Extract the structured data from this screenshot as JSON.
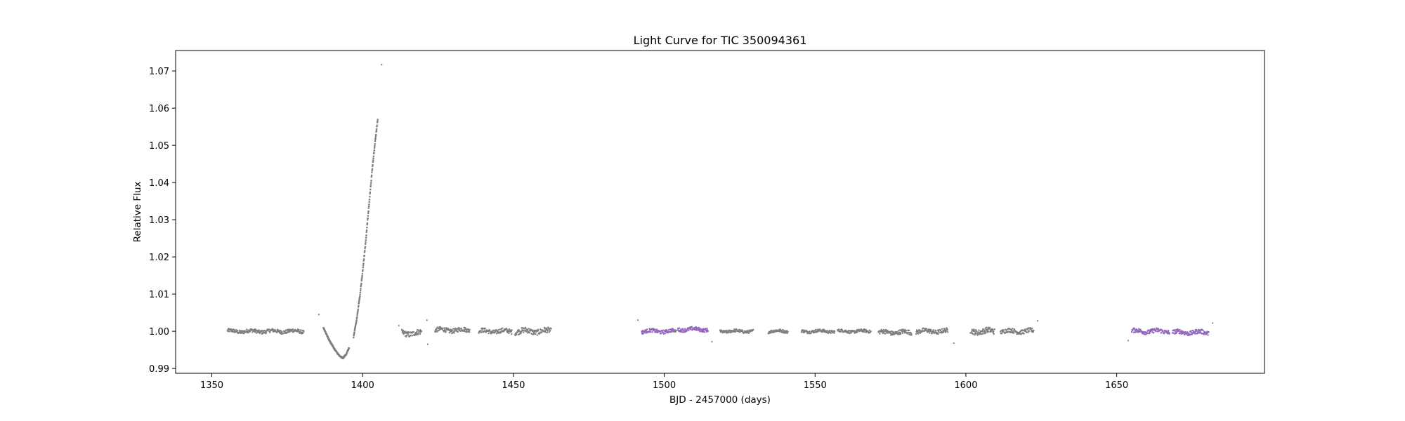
{
  "chart_data": {
    "type": "scatter",
    "title": "Light Curve for TIC 350094361",
    "xlabel": "BJD - 2457000 (days)",
    "ylabel": "Relative Flux",
    "xlim": [
      1338,
      1699
    ],
    "ylim": [
      0.9887,
      1.0755
    ],
    "xticks": [
      1350,
      1400,
      1450,
      1500,
      1550,
      1600,
      1650
    ],
    "xtick_labels": [
      "1350",
      "1400",
      "1450",
      "1500",
      "1550",
      "1600",
      "1650"
    ],
    "yticks": [
      0.99,
      1.0,
      1.01,
      1.02,
      1.03,
      1.04,
      1.05,
      1.06,
      1.07
    ],
    "ytick_labels": [
      "0.99",
      "1.00",
      "1.01",
      "1.02",
      "1.03",
      "1.04",
      "1.05",
      "1.06",
      "1.07"
    ],
    "grid": false,
    "legend": "none",
    "colors": {
      "gray": "#7f7f7f",
      "purple": "#9467bd"
    },
    "series": [
      {
        "color": "#7f7f7f",
        "segments": [
          {
            "x0": 1355.2,
            "x1": 1368.6,
            "y": 1.0,
            "amp": 0.001
          },
          {
            "x0": 1369.0,
            "x1": 1380.5,
            "y": 1.0,
            "amp": 0.001
          },
          {
            "x0": 1413.0,
            "x1": 1419.5,
            "y": 0.9995,
            "amp": 0.0015
          },
          {
            "x0": 1424.0,
            "x1": 1435.5,
            "y": 1.0003,
            "amp": 0.0012
          },
          {
            "x0": 1438.5,
            "x1": 1449.5,
            "y": 1.0,
            "amp": 0.0012
          },
          {
            "x0": 1450.5,
            "x1": 1462.5,
            "y": 1.0,
            "amp": 0.0015
          },
          {
            "x0": 1503.5,
            "x1": 1504.0,
            "y": 1.0,
            "amp": 0.0005
          },
          {
            "x0": 1518.5,
            "x1": 1529.5,
            "y": 1.0,
            "amp": 0.0008
          },
          {
            "x0": 1534.5,
            "x1": 1541.0,
            "y": 1.0,
            "amp": 0.0008
          },
          {
            "x0": 1545.5,
            "x1": 1556.5,
            "y": 1.0,
            "amp": 0.0008
          },
          {
            "x0": 1557.5,
            "x1": 1568.5,
            "y": 1.0,
            "amp": 0.0008
          },
          {
            "x0": 1571.0,
            "x1": 1582.0,
            "y": 0.9997,
            "amp": 0.0012
          },
          {
            "x0": 1583.5,
            "x1": 1594.0,
            "y": 1.0,
            "amp": 0.0012
          },
          {
            "x0": 1601.5,
            "x1": 1609.5,
            "y": 1.0,
            "amp": 0.0015
          },
          {
            "x0": 1611.5,
            "x1": 1622.5,
            "y": 1.0,
            "amp": 0.0012
          }
        ],
        "curve": {
          "x": [
            1387.0,
            1389.0,
            1391.0,
            1392.5,
            1393.5,
            1394.5,
            1395.5
          ],
          "y": [
            1.001,
            0.9975,
            0.9948,
            0.9932,
            0.9928,
            0.9938,
            0.9955
          ]
        },
        "rise": {
          "x": [
            1397.0,
            1398.0,
            1399.0,
            1400.0,
            1401.0,
            1402.0,
            1403.0,
            1404.0,
            1405.0
          ],
          "y": [
            0.9985,
            1.003,
            1.009,
            1.016,
            1.024,
            1.033,
            1.042,
            1.05,
            1.057
          ]
        },
        "points": [
          {
            "x": 1406.3,
            "y": 1.0717
          },
          {
            "x": 1385.5,
            "y": 1.0045
          },
          {
            "x": 1412.0,
            "y": 1.0015
          },
          {
            "x": 1421.3,
            "y": 1.003
          },
          {
            "x": 1421.6,
            "y": 0.9965
          },
          {
            "x": 1491.3,
            "y": 1.003
          },
          {
            "x": 1515.8,
            "y": 0.9972
          },
          {
            "x": 1596.0,
            "y": 0.9968
          },
          {
            "x": 1623.8,
            "y": 1.0028
          },
          {
            "x": 1653.8,
            "y": 0.9975
          },
          {
            "x": 1681.8,
            "y": 1.0022
          }
        ]
      },
      {
        "color": "#9467bd",
        "segments": [
          {
            "x0": 1492.5,
            "x1": 1503.2,
            "y": 1.0,
            "amp": 0.001
          },
          {
            "x0": 1504.5,
            "x1": 1514.5,
            "y": 1.0005,
            "amp": 0.001
          },
          {
            "x0": 1655.0,
            "x1": 1667.5,
            "y": 1.0,
            "amp": 0.0012
          },
          {
            "x0": 1668.5,
            "x1": 1680.5,
            "y": 0.9997,
            "amp": 0.0012
          }
        ],
        "points": []
      }
    ]
  }
}
